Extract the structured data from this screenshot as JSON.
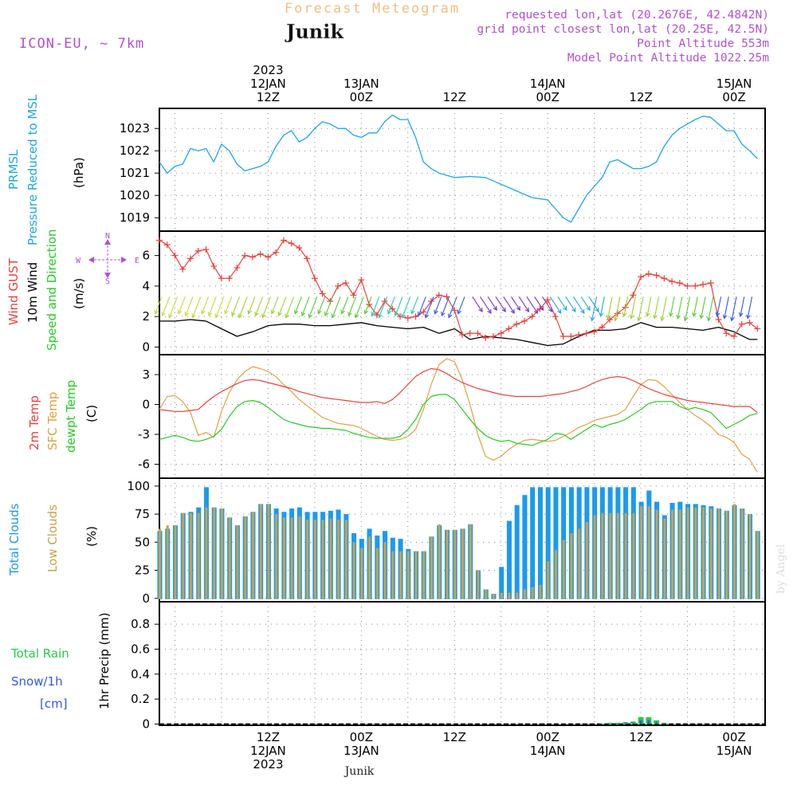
{
  "header": {
    "title": "Forecast Meteogram",
    "location": "Junik",
    "model": "ICON-EU, ~ 7km",
    "requested": "requested lon,lat (20.2676E, 42.4842N)",
    "gridpoint": "grid point closest lon,lat (20.25E, 42.5N)",
    "point_alt": "Point Altitude 553m",
    "model_alt": "Model Point Altitude 1022.25m",
    "credit": "by Angel",
    "footer_location": "Junik"
  },
  "time_axis": {
    "start_hours_before_12jan12z": 14,
    "span_hours": 78,
    "top_labels": [
      {
        "hour": 14,
        "lines": [
          "2023",
          "12JAN",
          "12Z"
        ]
      },
      {
        "hour": 26,
        "lines": [
          "13JAN",
          "00Z"
        ]
      },
      {
        "hour": 38,
        "lines": [
          "12Z"
        ]
      },
      {
        "hour": 50,
        "lines": [
          "14JAN",
          "00Z"
        ]
      },
      {
        "hour": 62,
        "lines": [
          "12Z"
        ]
      },
      {
        "hour": 74,
        "lines": [
          "15JAN",
          "00Z"
        ]
      }
    ],
    "bottom_labels": [
      {
        "hour": 14,
        "lines": [
          "12Z",
          "12JAN",
          "2023"
        ]
      },
      {
        "hour": 26,
        "lines": [
          "00Z",
          "13JAN"
        ]
      },
      {
        "hour": 38,
        "lines": [
          "12Z"
        ]
      },
      {
        "hour": 50,
        "lines": [
          "00Z",
          "14JAN"
        ]
      },
      {
        "hour": 62,
        "lines": [
          "12Z"
        ]
      },
      {
        "hour": 74,
        "lines": [
          "00Z",
          "15JAN"
        ]
      }
    ]
  },
  "colors": {
    "pressure": "#1aa6e6",
    "gust": "#e8403a",
    "wind10m": "#000000",
    "temp2m": "#e8403a",
    "sfctemp": "#e0a040",
    "dewpt": "#22cc22",
    "totalcloud": "#1a9af0",
    "lowcloud": "#c8a24a",
    "rain": "#22cc44",
    "snow": "#3355ee",
    "header_title": "#f0c080",
    "header_info": "#b050d0",
    "grid": "#888888"
  },
  "chart_data": [
    {
      "type": "line",
      "name": "pressure",
      "label_lines": [
        "PRMSL",
        "Pressure Reduced to MSL"
      ],
      "unit": "(hPa)",
      "yticks": [
        1019,
        1020,
        1021,
        1022,
        1023
      ],
      "ylim": [
        1018.4,
        1023.9
      ],
      "x": [
        0,
        1,
        2,
        3,
        4,
        5,
        6,
        7,
        8,
        9,
        10,
        11,
        12,
        13,
        14,
        15,
        16,
        17,
        18,
        19,
        20,
        21,
        22,
        23,
        24,
        25,
        26,
        27,
        28,
        29,
        30,
        31,
        32,
        33,
        34,
        35,
        36,
        37,
        38,
        40,
        42,
        44,
        46,
        48,
        50,
        51,
        52,
        53,
        54,
        55,
        56,
        57,
        58,
        59,
        60,
        61,
        62,
        63,
        64,
        65,
        66,
        67,
        68,
        69,
        70,
        71,
        72,
        73,
        74,
        75,
        76,
        77
      ],
      "values": [
        1021.5,
        1021.0,
        1021.3,
        1021.4,
        1022.1,
        1022.0,
        1022.1,
        1021.5,
        1022.3,
        1022.0,
        1021.4,
        1021.1,
        1021.2,
        1021.3,
        1021.5,
        1022.2,
        1022.7,
        1022.9,
        1022.4,
        1022.6,
        1023.0,
        1023.3,
        1023.2,
        1023.0,
        1023.0,
        1022.7,
        1022.6,
        1022.8,
        1022.8,
        1023.3,
        1023.6,
        1023.4,
        1023.4,
        1022.6,
        1021.5,
        1021.2,
        1021.0,
        1020.9,
        1020.8,
        1020.85,
        1020.8,
        1020.5,
        1020.2,
        1019.9,
        1019.8,
        1019.4,
        1019.0,
        1018.8,
        1019.4,
        1020.0,
        1020.4,
        1020.8,
        1021.5,
        1021.6,
        1021.4,
        1021.2,
        1021.2,
        1021.3,
        1021.5,
        1022.2,
        1022.7,
        1023.0,
        1023.2,
        1023.4,
        1023.55,
        1023.5,
        1023.2,
        1022.9,
        1022.9,
        1022.3,
        1022.0,
        1021.65
      ]
    },
    {
      "type": "line",
      "name": "wind",
      "label_lines": [
        "Wind GUST",
        "10m Wind",
        "Speed and Direction"
      ],
      "unit": "(m/s)",
      "compass": {
        "n": "N",
        "s": "S",
        "w": "W",
        "e": "E"
      },
      "yticks": [
        0,
        2,
        4,
        6
      ],
      "ylim": [
        -0.5,
        7.6
      ],
      "gust_x": [
        0,
        1,
        2,
        3,
        4,
        5,
        6,
        7,
        8,
        9,
        10,
        11,
        12,
        13,
        14,
        15,
        16,
        17,
        18,
        19,
        20,
        21,
        22,
        23,
        24,
        25,
        26,
        27,
        28,
        29,
        30,
        31,
        32,
        33,
        34,
        35,
        36,
        37,
        38,
        39,
        40,
        41,
        42,
        43,
        44,
        45,
        46,
        47,
        48,
        49,
        50,
        51,
        52,
        53,
        54,
        55,
        56,
        57,
        58,
        59,
        60,
        61,
        62,
        63,
        64,
        65,
        66,
        67,
        68,
        69,
        70,
        71,
        72,
        73,
        74,
        75,
        76,
        77
      ],
      "gust": [
        7.0,
        6.7,
        6.0,
        5.1,
        5.8,
        6.3,
        6.4,
        5.3,
        4.5,
        4.5,
        5.2,
        6.0,
        5.9,
        6.1,
        5.9,
        6.2,
        7.0,
        6.8,
        6.5,
        5.8,
        4.5,
        3.5,
        3.0,
        4.0,
        4.2,
        3.4,
        4.4,
        2.8,
        2.1,
        3.0,
        2.5,
        2.0,
        1.9,
        2.0,
        2.3,
        3.0,
        3.4,
        3.3,
        2.4,
        0.8,
        0.9,
        0.9,
        0.6,
        0.7,
        0.9,
        1.2,
        1.5,
        1.7,
        2.0,
        2.5,
        3.1,
        2.0,
        0.7,
        0.7,
        0.8,
        0.9,
        1.0,
        1.3,
        1.8,
        2.2,
        2.6,
        3.4,
        4.6,
        4.8,
        4.7,
        4.5,
        4.3,
        4.2,
        4.0,
        4.0,
        4.1,
        4.2,
        1.8,
        0.9,
        0.7,
        1.5,
        1.6,
        1.2
      ],
      "wind_x": [
        0,
        2,
        4,
        6,
        8,
        10,
        12,
        14,
        16,
        18,
        20,
        22,
        24,
        26,
        28,
        30,
        32,
        34,
        36,
        38,
        40,
        42,
        44,
        46,
        48,
        50,
        52,
        54,
        56,
        58,
        60,
        62,
        64,
        66,
        68,
        70,
        72,
        74,
        76,
        77
      ],
      "wind": [
        1.7,
        1.7,
        1.8,
        1.7,
        1.2,
        0.7,
        1.0,
        1.4,
        1.5,
        1.5,
        1.4,
        1.4,
        1.5,
        1.6,
        1.4,
        1.3,
        1.2,
        1.3,
        0.9,
        1.2,
        0.5,
        0.7,
        0.6,
        0.5,
        0.3,
        0.1,
        0.2,
        0.7,
        1.1,
        1.1,
        1.2,
        1.6,
        1.3,
        1.3,
        1.2,
        1.1,
        1.3,
        1.0,
        0.5,
        0.5
      ]
    },
    {
      "type": "line",
      "name": "temperature",
      "label_lines": [
        "2m Temp",
        "SFC Temp",
        "dewpt Temp"
      ],
      "unit": "(C)",
      "yticks": [
        -6,
        -3,
        0,
        3
      ],
      "ylim": [
        -7.4,
        5.0
      ],
      "x": [
        0,
        1,
        2,
        3,
        4,
        5,
        6,
        7,
        8,
        9,
        10,
        11,
        12,
        13,
        14,
        15,
        16,
        17,
        18,
        19,
        20,
        21,
        22,
        23,
        24,
        25,
        26,
        27,
        28,
        29,
        30,
        31,
        32,
        33,
        34,
        35,
        36,
        37,
        38,
        39,
        40,
        41,
        42,
        43,
        44,
        45,
        46,
        47,
        48,
        49,
        50,
        51,
        52,
        53,
        54,
        55,
        56,
        57,
        58,
        59,
        60,
        61,
        62,
        63,
        64,
        65,
        66,
        67,
        68,
        69,
        70,
        71,
        72,
        73,
        74,
        75,
        76,
        77
      ],
      "temp2m": [
        -0.5,
        -0.6,
        -0.7,
        -0.7,
        -0.6,
        -0.5,
        0.2,
        0.8,
        1.3,
        1.7,
        2.1,
        2.4,
        2.5,
        2.4,
        2.2,
        2.0,
        1.8,
        1.6,
        1.3,
        1.1,
        0.9,
        0.7,
        0.6,
        0.5,
        0.4,
        0.3,
        0.2,
        0.2,
        0.3,
        0.1,
        0.5,
        1.2,
        2.0,
        2.8,
        3.3,
        3.6,
        3.5,
        3.1,
        2.6,
        2.2,
        1.9,
        1.6,
        1.4,
        1.2,
        1.0,
        0.9,
        0.8,
        0.8,
        0.8,
        0.8,
        0.9,
        1.0,
        1.1,
        1.3,
        1.5,
        1.8,
        2.2,
        2.5,
        2.7,
        2.8,
        2.7,
        2.4,
        2.0,
        1.6,
        1.3,
        1.0,
        0.8,
        0.6,
        0.4,
        0.3,
        0.2,
        0.1,
        0.0,
        -0.1,
        -0.2,
        -0.2,
        -0.2,
        -0.8
      ],
      "sfctemp": [
        -0.5,
        0.8,
        0.9,
        0.3,
        -0.8,
        -3.1,
        -2.8,
        -3.3,
        -0.7,
        1.2,
        2.5,
        3.3,
        3.8,
        3.6,
        3.3,
        2.8,
        2.0,
        1.3,
        0.5,
        -0.1,
        -0.7,
        -1.3,
        -1.6,
        -1.9,
        -2.0,
        -2.1,
        -2.4,
        -2.8,
        -3.2,
        -3.5,
        -3.6,
        -3.5,
        -3.2,
        -2.5,
        -0.5,
        2.0,
        4.0,
        4.6,
        4.3,
        2.5,
        0.0,
        -3.0,
        -5.2,
        -5.6,
        -5.2,
        -4.5,
        -4.0,
        -3.6,
        -3.5,
        -3.6,
        -3.7,
        -3.6,
        -3.2,
        -2.8,
        -2.3,
        -2.0,
        -1.6,
        -1.4,
        -1.2,
        -1.0,
        -0.5,
        0.8,
        2.0,
        2.5,
        2.4,
        1.8,
        1.0,
        0.2,
        -0.5,
        -1.1,
        -1.6,
        -2.2,
        -3.0,
        -3.3,
        -3.8,
        -5.0,
        -5.5,
        -6.8
      ],
      "dewpt": [
        -3.5,
        -3.3,
        -3.1,
        -3.3,
        -3.6,
        -3.7,
        -3.5,
        -3.2,
        -2.5,
        -1.2,
        -0.2,
        0.3,
        0.4,
        0.2,
        -0.3,
        -0.9,
        -1.5,
        -1.8,
        -2.0,
        -2.2,
        -2.3,
        -2.4,
        -2.4,
        -2.5,
        -2.6,
        -2.9,
        -3.1,
        -3.3,
        -3.4,
        -3.4,
        -3.4,
        -3.2,
        -2.5,
        -1.5,
        0.0,
        0.8,
        1.0,
        1.0,
        0.5,
        -0.5,
        -1.5,
        -2.4,
        -3.1,
        -3.5,
        -3.7,
        -3.6,
        -3.9,
        -4.0,
        -4.1,
        -3.8,
        -3.5,
        -2.9,
        -3.0,
        -3.5,
        -3.0,
        -2.5,
        -2.0,
        -2.3,
        -2.0,
        -1.8,
        -1.5,
        -1.0,
        -0.5,
        0.1,
        0.3,
        0.3,
        0.3,
        -0.2,
        -0.5,
        -0.3,
        -0.5,
        -0.8,
        -1.6,
        -2.4,
        -2.0,
        -1.6,
        -1.1,
        -0.9
      ],
      "x_short": [
        0,
        1,
        2,
        3,
        4,
        5,
        6,
        7,
        8,
        9,
        10,
        11,
        12,
        13,
        14,
        15,
        16,
        17,
        18,
        19,
        20,
        21,
        22,
        23,
        24,
        25,
        26,
        27,
        28,
        29,
        30,
        31,
        32,
        33,
        34,
        35,
        36,
        37,
        38,
        39,
        40,
        41,
        42,
        43,
        44,
        45,
        46,
        47,
        48,
        49,
        50,
        51,
        52,
        53,
        54,
        55,
        56,
        57,
        58,
        59,
        60,
        61,
        62,
        63,
        64,
        65,
        66,
        67,
        68,
        69,
        70,
        71,
        72,
        73,
        74,
        75,
        76,
        77
      ]
    },
    {
      "type": "bar",
      "name": "clouds",
      "label_lines": [
        "Total Clouds",
        "Low Clouds"
      ],
      "unit": "(%)",
      "yticks": [
        0,
        25,
        50,
        75,
        100
      ],
      "ylim": [
        -3,
        107
      ],
      "total": [
        60,
        62,
        65,
        76,
        77,
        81,
        99,
        81,
        80,
        72,
        65,
        73,
        77,
        84,
        84,
        80,
        77,
        80,
        81,
        77,
        77,
        77,
        78,
        79,
        75,
        58,
        53,
        62,
        56,
        60,
        54,
        53,
        44,
        42,
        42,
        55,
        65,
        61,
        61,
        62,
        66,
        25,
        8,
        4,
        28,
        69,
        83,
        92,
        99,
        99,
        99,
        99,
        99,
        99,
        99,
        99,
        99,
        99,
        99,
        99,
        99,
        99,
        86,
        96,
        86,
        74,
        85,
        86,
        84,
        84,
        83,
        82,
        80,
        78,
        83,
        80,
        75,
        60
      ],
      "low": [
        62,
        65,
        65,
        76,
        76,
        76,
        81,
        81,
        80,
        72,
        65,
        73,
        77,
        84,
        84,
        75,
        72,
        72,
        73,
        70,
        70,
        70,
        71,
        70,
        70,
        50,
        45,
        55,
        45,
        50,
        42,
        42,
        42,
        42,
        42,
        55,
        66,
        61,
        61,
        62,
        66,
        25,
        8,
        4,
        5,
        5,
        5,
        8,
        10,
        12,
        33,
        43,
        52,
        58,
        62,
        68,
        74,
        76,
        76,
        76,
        76,
        76,
        82,
        82,
        79,
        71,
        79,
        79,
        81,
        81,
        81,
        80,
        80,
        78,
        84,
        80,
        75,
        60
      ]
    },
    {
      "type": "bar",
      "name": "precip",
      "label_lines": [
        "Total Rain",
        "Snow/1h",
        "[cm]"
      ],
      "unit": "1hr Precip (mm)",
      "yticks": [
        0,
        0.2,
        0.4,
        0.6,
        0.8
      ],
      "ylim": [
        -0.01,
        0.98
      ],
      "x": [
        57,
        58,
        59,
        60,
        61,
        62,
        63,
        64,
        65
      ],
      "total_rain": [
        0.005,
        0.01,
        0.01,
        0.015,
        0.02,
        0.055,
        0.055,
        0.03,
        0.01
      ],
      "snow": [
        0.003,
        0.005,
        0.006,
        0.01,
        0.012,
        0.03,
        0.03,
        0.015,
        0.005
      ]
    }
  ]
}
